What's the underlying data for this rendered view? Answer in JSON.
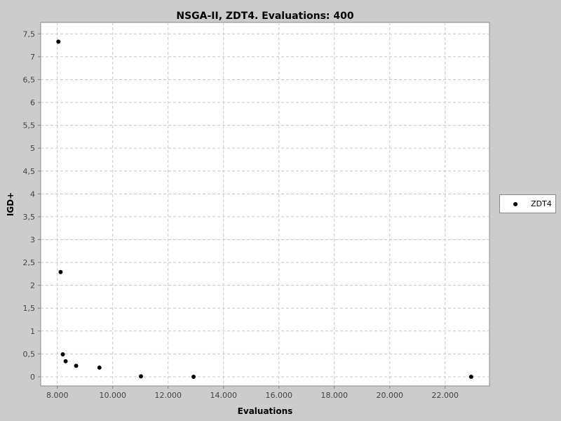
{
  "chart_data": {
    "type": "scatter",
    "title": "NSGA-II, ZDT4. Evaluations: 400",
    "xlabel": "Evaluations",
    "ylabel": "IGD+",
    "xlim": [
      7400,
      23600
    ],
    "ylim": [
      -0.2,
      7.75
    ],
    "xticks": [
      8000,
      10000,
      12000,
      14000,
      16000,
      18000,
      20000,
      22000
    ],
    "xtick_labels": [
      "8.000",
      "10.000",
      "12.000",
      "14.000",
      "16.000",
      "18.000",
      "20.000",
      "22.000"
    ],
    "yticks": [
      0,
      0.5,
      1,
      1.5,
      2,
      2.5,
      3,
      3.5,
      4,
      4.5,
      5,
      5.5,
      6,
      6.5,
      7,
      7.5
    ],
    "ytick_labels": [
      "0",
      "0,5",
      "1",
      "1,5",
      "2",
      "2,5",
      "3",
      "3,5",
      "4",
      "4,5",
      "5",
      "5,5",
      "6",
      "6,5",
      "7",
      "7,5"
    ],
    "grid": true,
    "legend_position": "right",
    "series": [
      {
        "name": "ZDT4",
        "color": "#000000",
        "x": [
          8040,
          8120,
          8200,
          8300,
          8680,
          9520,
          11020,
          12920,
          22940
        ],
        "y": [
          7.33,
          2.29,
          0.49,
          0.34,
          0.24,
          0.2,
          0.01,
          0.0,
          0.0
        ]
      }
    ]
  }
}
